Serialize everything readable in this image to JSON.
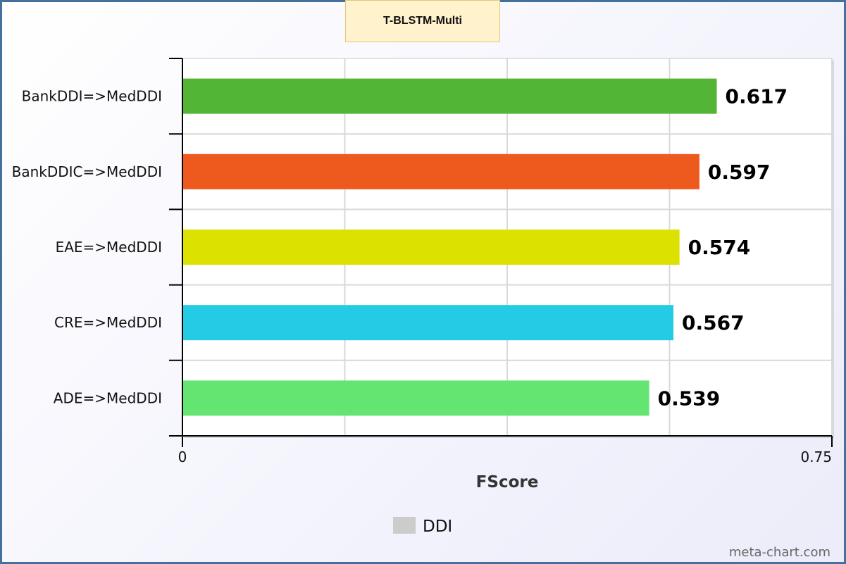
{
  "chart_data": {
    "type": "bar",
    "orientation": "horizontal",
    "title": "T-BLSTM-Multi",
    "categories": [
      "BankDDI=>MedDDI",
      "BankDDIC=>MedDDI",
      "EAE=>MedDDI",
      "CRE=>MedDDI",
      "ADE=>MedDDI"
    ],
    "values": [
      0.617,
      0.597,
      0.574,
      0.567,
      0.539
    ],
    "data_labels": [
      "0.617",
      "0.597",
      "0.574",
      "0.567",
      "0.539"
    ],
    "bar_colors": [
      "#52b535",
      "#ee5a1e",
      "#dde100",
      "#24cbe5",
      "#64e572"
    ],
    "xlabel": "FScore",
    "ylabel": "",
    "xlim": [
      0,
      0.75
    ],
    "x_tick_labels": [
      "0",
      "0.75"
    ],
    "grid": true,
    "legend": {
      "position": "bottom",
      "entries": [
        {
          "name": "DDI",
          "color": "#cccccc"
        }
      ]
    }
  },
  "watermark": "meta-chart.com"
}
